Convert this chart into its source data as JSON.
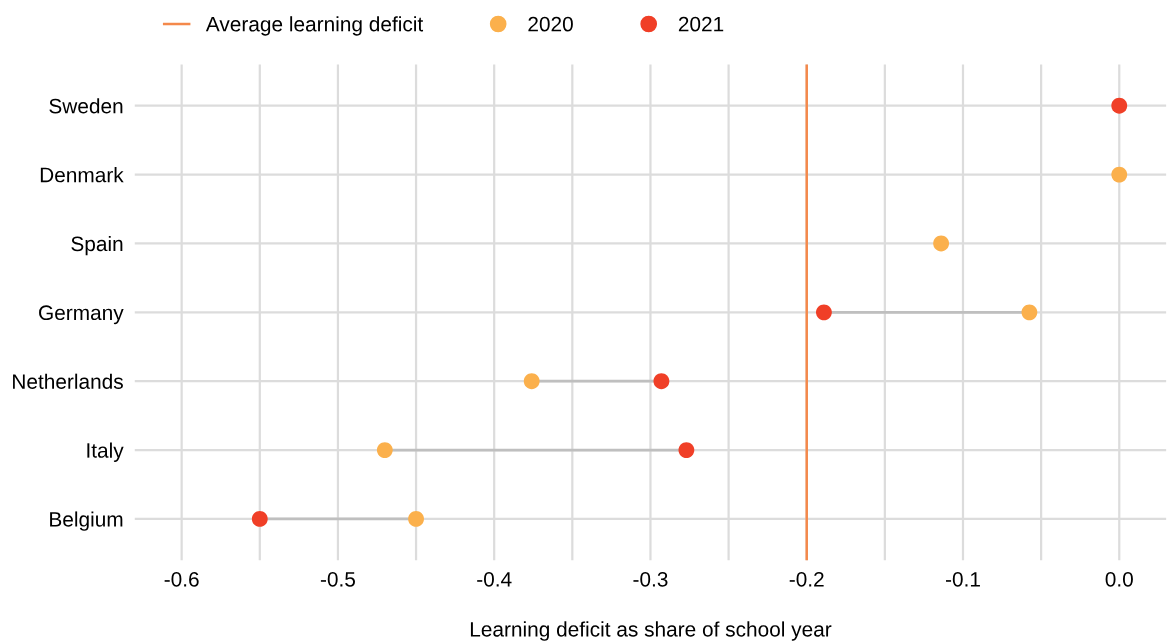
{
  "chart_data": {
    "type": "scatter",
    "xlabel": "Learning deficit as share of school year",
    "categories": [
      "Sweden",
      "Denmark",
      "Spain",
      "Germany",
      "Netherlands",
      "Italy",
      "Belgium"
    ],
    "orientation": "horizontal",
    "series": [
      {
        "name": "2020",
        "color": "#fbb04c",
        "values": [
          null,
          0.0,
          -0.114,
          -0.0575,
          -0.376,
          -0.47,
          -0.45
        ]
      },
      {
        "name": "2021",
        "color": "#f03f27",
        "values": [
          0.0,
          null,
          null,
          -0.189,
          -0.293,
          -0.277,
          -0.55
        ]
      }
    ],
    "ref_lines": [
      {
        "axis": "x",
        "value": -0.2,
        "label": "Average learning deficit",
        "color": "#f4894b"
      }
    ],
    "xlim": [
      -0.63,
      0.03
    ],
    "xticks": [
      {
        "value": -0.6,
        "label": "-0.6"
      },
      {
        "value": -0.55,
        "label": null
      },
      {
        "value": -0.5,
        "label": "-0.5"
      },
      {
        "value": -0.45,
        "label": null
      },
      {
        "value": -0.4,
        "label": "-0.4"
      },
      {
        "value": -0.35,
        "label": null
      },
      {
        "value": -0.3,
        "label": "-0.3"
      },
      {
        "value": -0.25,
        "label": null
      },
      {
        "value": -0.2,
        "label": "-0.2"
      },
      {
        "value": -0.15,
        "label": null
      },
      {
        "value": -0.1,
        "label": "-0.1"
      },
      {
        "value": -0.05,
        "label": null
      },
      {
        "value": 0.0,
        "label": "0.0"
      }
    ],
    "grid": true,
    "legend": "top",
    "marker": "circle"
  }
}
